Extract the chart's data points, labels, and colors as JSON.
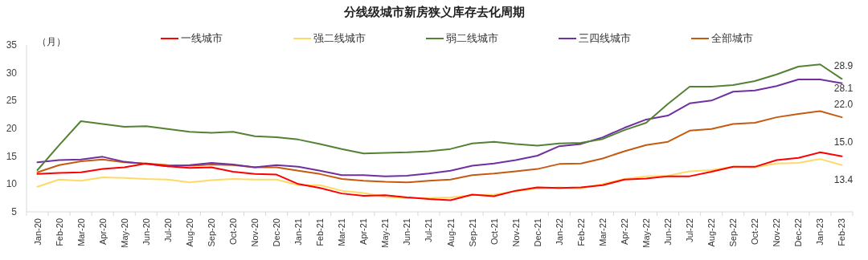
{
  "chart_data": {
    "type": "line",
    "title": "分线级城市新房狭义库存去化周期",
    "ylabel": "（月）",
    "categories": [
      "Jan-20",
      "Feb-20",
      "Mar-20",
      "Apr-20",
      "May-20",
      "Jun-20",
      "Jul-20",
      "Aug-20",
      "Sep-20",
      "Oct-20",
      "Nov-20",
      "Dec-20",
      "Jan-21",
      "Feb-21",
      "Mar-21",
      "Apr-21",
      "May-21",
      "Jun-21",
      "Jul-21",
      "Aug-21",
      "Sep-21",
      "Oct-21",
      "Nov-21",
      "Dec-21",
      "Jan-22",
      "Feb-22",
      "Mar-22",
      "Apr-22",
      "May-22",
      "Jun-22",
      "Jul-22",
      "Aug-22",
      "Sep-22",
      "Oct-22",
      "Nov-22",
      "Dec-22",
      "Jan-23",
      "Feb-23"
    ],
    "ylim": [
      5,
      35
    ],
    "yticks": [
      5,
      10,
      15,
      20,
      25,
      30,
      35
    ],
    "grid": false,
    "legend": "top",
    "marker": "none",
    "line_style": "solid",
    "series": [
      {
        "name": "一线城市",
        "color": "#ff0000",
        "values": [
          11.8,
          12.0,
          12.1,
          12.7,
          13.0,
          13.7,
          13.2,
          12.9,
          13.0,
          12.2,
          11.8,
          11.7,
          10.0,
          9.3,
          8.3,
          7.9,
          8.0,
          7.6,
          7.3,
          7.1,
          8.1,
          7.8,
          8.8,
          9.4,
          9.3,
          9.4,
          9.8,
          10.8,
          11.0,
          11.4,
          11.4,
          12.2,
          13.1,
          13.1,
          14.3,
          14.7,
          15.7,
          15.0
        ],
        "value_labels": [
          null,
          null,
          null,
          null,
          null,
          null,
          null,
          null,
          null,
          null,
          null,
          null,
          null,
          null,
          null,
          null,
          null,
          null,
          null,
          null,
          null,
          null,
          null,
          null,
          null,
          null,
          null,
          null,
          null,
          null,
          null,
          null,
          null,
          null,
          null,
          null,
          null,
          "15.0"
        ]
      },
      {
        "name": "强二线城市",
        "color": "#ffd966",
        "values": [
          9.5,
          10.8,
          10.6,
          11.2,
          11.1,
          10.9,
          10.8,
          10.3,
          10.7,
          10.9,
          10.8,
          10.8,
          9.8,
          9.8,
          8.8,
          8.4,
          7.7,
          7.5,
          7.5,
          7.6,
          8.0,
          8.1,
          8.7,
          9.2,
          9.4,
          9.2,
          10.0,
          10.9,
          11.4,
          11.5,
          12.3,
          12.5,
          13.1,
          13.0,
          13.7,
          13.8,
          14.5,
          13.4
        ],
        "value_labels": [
          null,
          null,
          null,
          null,
          null,
          null,
          null,
          null,
          null,
          null,
          null,
          null,
          null,
          null,
          null,
          null,
          null,
          null,
          null,
          null,
          null,
          null,
          null,
          null,
          null,
          null,
          null,
          null,
          null,
          null,
          null,
          null,
          null,
          null,
          null,
          null,
          null,
          "13.4"
        ]
      },
      {
        "name": "弱二线城市",
        "color": "#548235",
        "values": [
          12.5,
          17.0,
          21.3,
          20.8,
          20.3,
          20.4,
          19.9,
          19.4,
          19.2,
          19.4,
          18.6,
          18.4,
          18.0,
          17.2,
          16.3,
          15.5,
          15.6,
          15.7,
          15.9,
          16.3,
          17.3,
          17.6,
          17.2,
          16.9,
          17.3,
          17.4,
          18.1,
          19.7,
          21.0,
          24.4,
          27.5,
          27.5,
          27.8,
          28.5,
          29.7,
          31.1,
          31.5,
          28.9
        ],
        "value_labels": [
          null,
          null,
          null,
          null,
          null,
          null,
          null,
          null,
          null,
          null,
          null,
          null,
          null,
          null,
          null,
          null,
          null,
          null,
          null,
          null,
          null,
          null,
          null,
          null,
          null,
          null,
          null,
          null,
          null,
          null,
          null,
          null,
          null,
          null,
          null,
          null,
          null,
          "28.9"
        ]
      },
      {
        "name": "三四线城市",
        "color": "#7030a0",
        "values": [
          13.9,
          14.3,
          14.4,
          14.9,
          14.0,
          13.6,
          13.2,
          13.4,
          13.8,
          13.5,
          13.0,
          13.4,
          13.1,
          12.4,
          11.6,
          11.6,
          11.4,
          11.5,
          11.9,
          12.4,
          13.3,
          13.7,
          14.3,
          15.1,
          16.8,
          17.2,
          18.4,
          20.1,
          21.6,
          22.3,
          24.5,
          25.0,
          26.6,
          26.8,
          27.6,
          28.8,
          28.8,
          28.1
        ],
        "value_labels": [
          null,
          null,
          null,
          null,
          null,
          null,
          null,
          null,
          null,
          null,
          null,
          null,
          null,
          null,
          null,
          null,
          null,
          null,
          null,
          null,
          null,
          null,
          null,
          null,
          null,
          null,
          null,
          null,
          null,
          null,
          null,
          null,
          null,
          null,
          null,
          null,
          null,
          "28.1"
        ]
      },
      {
        "name": "全部城市",
        "color": "#c55a11",
        "values": [
          12.1,
          13.4,
          14.1,
          14.4,
          13.9,
          13.7,
          13.4,
          13.3,
          13.5,
          13.4,
          13.0,
          13.0,
          12.4,
          11.8,
          10.9,
          10.6,
          10.4,
          10.3,
          10.6,
          10.8,
          11.6,
          11.9,
          12.3,
          12.7,
          13.6,
          13.7,
          14.6,
          15.9,
          17.0,
          17.6,
          19.6,
          19.9,
          20.8,
          21.0,
          22.0,
          22.6,
          23.1,
          22.0
        ],
        "value_labels": [
          null,
          null,
          null,
          null,
          null,
          null,
          null,
          null,
          null,
          null,
          null,
          null,
          null,
          null,
          null,
          null,
          null,
          null,
          null,
          null,
          null,
          null,
          null,
          null,
          null,
          null,
          null,
          null,
          null,
          null,
          null,
          null,
          null,
          null,
          null,
          null,
          null,
          "22.0"
        ]
      }
    ]
  }
}
